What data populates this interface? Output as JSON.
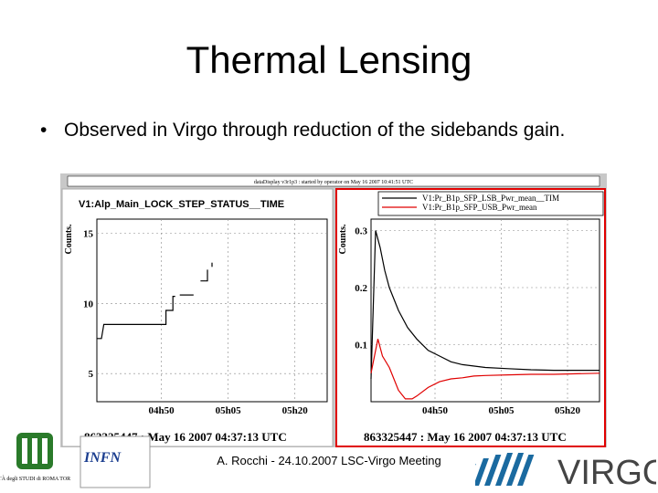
{
  "slide": {
    "title": "Thermal Lensing",
    "bullet": "Observed in Virgo through reduction of the sidebands gain.",
    "footer": "A. Rocchi - 24.10.2007 LSC-Virgo Meeting"
  },
  "window_caption": "dataDisplay v3r1p3 : started by operator on May 16 2007 10:41:51 UTC",
  "logos": {
    "tor_vergata": "UNIVERSITÀ degli STUDI di ROMA TOR VERGATA",
    "infn": "INFN",
    "virgo": "VIRGO"
  },
  "colors": {
    "red_series": "#e00000",
    "black_series": "#000000",
    "frame_red": "#e00000"
  },
  "chart_data": [
    {
      "type": "line",
      "title": "V1:Alp_Main_LOCK_STEP_STATUS__TIME",
      "ylabel": "Counts.",
      "ylim": [
        3,
        16
      ],
      "yticks": [
        5,
        10,
        15
      ],
      "xticks": [
        "04h50",
        "05h05",
        "05h20"
      ],
      "footer_time": "863325447 : May 16 2007 04:37:13 UTC",
      "grid": true,
      "series": [
        {
          "x": [
            0,
            0.02,
            0.03,
            0.3,
            0.3,
            0.33,
            0.33,
            0.34,
            0.34
          ],
          "y": [
            7.5,
            7.5,
            8.5,
            8.5,
            9.5,
            9.5,
            10.5,
            10.5,
            10.5
          ]
        },
        {
          "x": [
            0.36,
            0.42
          ],
          "y": [
            10.6,
            10.6
          ]
        },
        {
          "x": [
            0.45,
            0.48,
            0.48
          ],
          "y": [
            11.6,
            11.6,
            12.4
          ]
        },
        {
          "x": [
            0.5,
            0.5
          ],
          "y": [
            12.6,
            12.9
          ]
        }
      ]
    },
    {
      "type": "line",
      "legend": [
        "V1:Pr_B1p_SFP_LSB_Pwr_mean__TIM",
        "V1:Pr_B1p_SFP_USB_Pwr_mean"
      ],
      "ylabel": "Counts.",
      "ylim": [
        0.0,
        0.32
      ],
      "yticks": [
        0.1,
        0.2,
        0.3
      ],
      "xticks": [
        "04h50",
        "05h05",
        "05h20"
      ],
      "footer_time": "863325447 : May 16 2007 04:37:13 UTC",
      "grid": true,
      "series": [
        {
          "color": "#000000",
          "x": [
            0,
            0.02,
            0.04,
            0.06,
            0.08,
            0.12,
            0.16,
            0.2,
            0.25,
            0.3,
            0.35,
            0.4,
            0.5,
            0.6,
            0.7,
            0.8,
            0.9,
            1.0
          ],
          "y": [
            0.04,
            0.3,
            0.27,
            0.23,
            0.2,
            0.16,
            0.13,
            0.11,
            0.09,
            0.08,
            0.07,
            0.065,
            0.06,
            0.058,
            0.056,
            0.055,
            0.055,
            0.055
          ]
        },
        {
          "color": "#e00000",
          "x": [
            0,
            0.01,
            0.03,
            0.05,
            0.08,
            0.1,
            0.12,
            0.15,
            0.18,
            0.2,
            0.25,
            0.3,
            0.35,
            0.4,
            0.45,
            0.5,
            0.6,
            0.7,
            0.8,
            0.9,
            1.0
          ],
          "y": [
            0.05,
            0.07,
            0.11,
            0.08,
            0.06,
            0.04,
            0.02,
            0.005,
            0.005,
            0.01,
            0.025,
            0.035,
            0.04,
            0.042,
            0.045,
            0.046,
            0.047,
            0.048,
            0.048,
            0.049,
            0.05
          ]
        }
      ]
    }
  ]
}
